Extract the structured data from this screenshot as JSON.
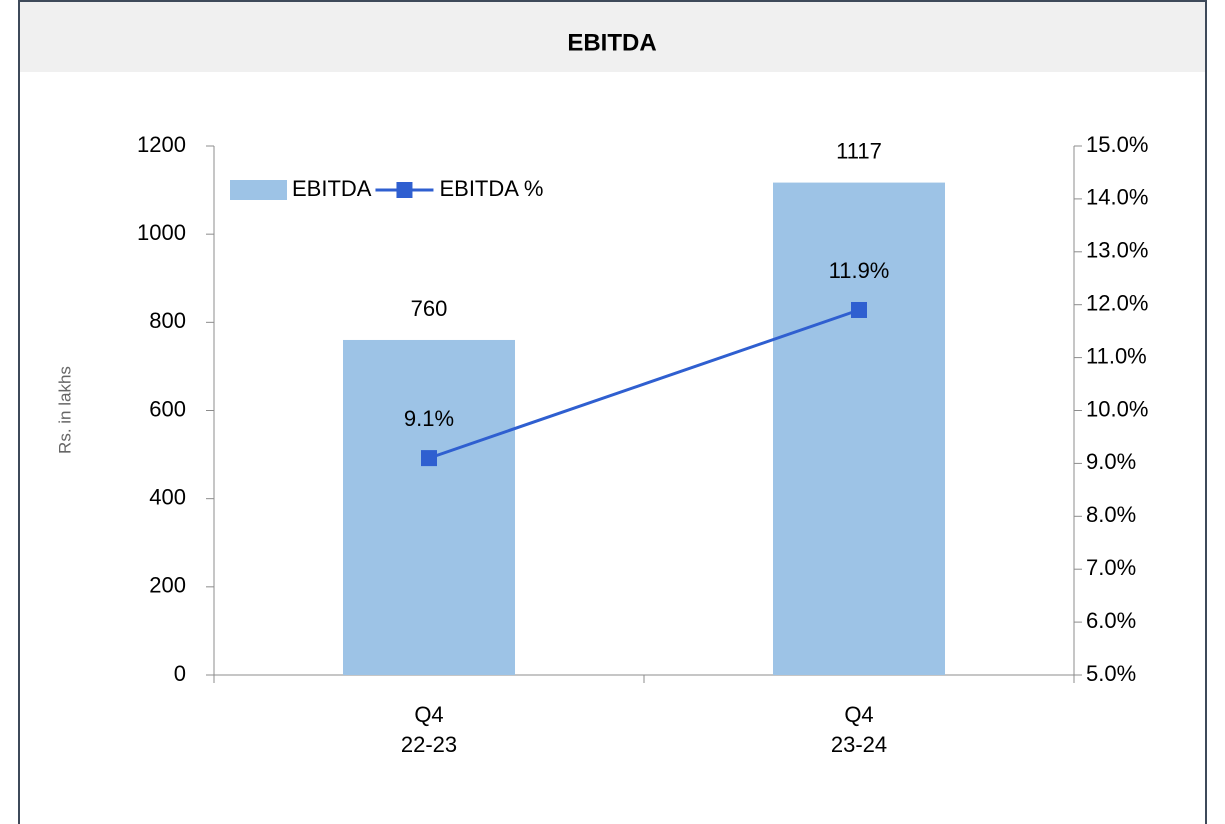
{
  "chart_data": {
    "type": "bar+line",
    "title": "EBITDA",
    "y_label": "Rs. in lakhs",
    "categories": [
      "Q4\n22-23",
      "Q4\n23-24"
    ],
    "series": [
      {
        "name": "EBITDA",
        "type": "bar",
        "color": "#9dc3e6",
        "values": [
          760,
          1117
        ]
      },
      {
        "name": "EBITDA %",
        "type": "line",
        "color": "#2f5fd0",
        "axis": "y2",
        "values": [
          9.1,
          11.9
        ],
        "value_labels": [
          "9.1%",
          "11.9%"
        ]
      }
    ],
    "ylim": [
      0,
      1200
    ],
    "yticks": [
      0,
      200,
      400,
      600,
      800,
      1000,
      1200
    ],
    "y2lim": [
      5,
      15
    ],
    "y2ticks": [
      {
        "value": 5,
        "label": "5.0%"
      },
      {
        "value": 6,
        "label": "6.0%"
      },
      {
        "value": 7,
        "label": "7.0%"
      },
      {
        "value": 8,
        "label": "8.0%"
      },
      {
        "value": 9,
        "label": "9.0%"
      },
      {
        "value": 10,
        "label": "10.0%"
      },
      {
        "value": 11,
        "label": "11.0%"
      },
      {
        "value": 12,
        "label": "12.0%"
      },
      {
        "value": 13,
        "label": "13.0%"
      },
      {
        "value": 14,
        "label": "14.0%"
      },
      {
        "value": 15,
        "label": "15.0%"
      }
    ],
    "legend": "upper left",
    "grid": false
  }
}
